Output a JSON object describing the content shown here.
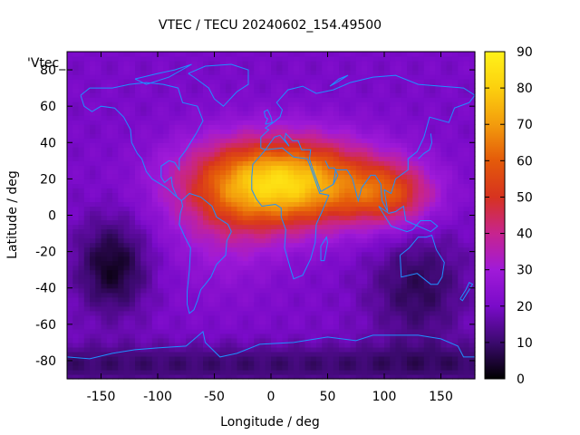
{
  "chart_data": {
    "type": "heatmap",
    "title": "VTEC / TECU 20240602_154.49500",
    "xlabel": "Longitude / deg",
    "ylabel": "Latitude / deg",
    "xlim": [
      -180,
      180
    ],
    "ylim": [
      -90,
      90
    ],
    "x_ticks": [
      -150,
      -100,
      -50,
      0,
      50,
      100,
      150
    ],
    "y_ticks": [
      -80,
      -60,
      -40,
      -20,
      0,
      20,
      40,
      60,
      80
    ],
    "colorbar": {
      "range": [
        0,
        90
      ],
      "ticks": [
        0,
        10,
        20,
        30,
        40,
        50,
        60,
        70,
        80,
        90
      ],
      "palette": [
        "#000000",
        "#3b0a6e",
        "#7a0bc9",
        "#a01ad8",
        "#c7248f",
        "#d7331f",
        "#e45a0a",
        "#f39c0d",
        "#fcd00e",
        "#fff21a"
      ]
    },
    "legend_key": "'Vtec_",
    "legend_placement": "top-left",
    "coastline_color": "#1e90ff",
    "grid": false,
    "field": {
      "background_tecu": 20,
      "features": [
        {
          "kind": "equatorial-anomaly-max",
          "lon": 20,
          "lat": 18,
          "peak_tecu": 85
        },
        {
          "kind": "anomaly-extension-east",
          "lon": 100,
          "lat": 12,
          "peak_tecu": 55
        },
        {
          "kind": "southern-depletion",
          "lon": -140,
          "lat": -28,
          "peak_tecu": 3
        },
        {
          "kind": "southern-depletion",
          "lon": 130,
          "lat": -35,
          "peak_tecu": 8
        },
        {
          "kind": "polar-low",
          "lon": 120,
          "lat": -85,
          "peak_tecu": 5
        }
      ]
    }
  }
}
